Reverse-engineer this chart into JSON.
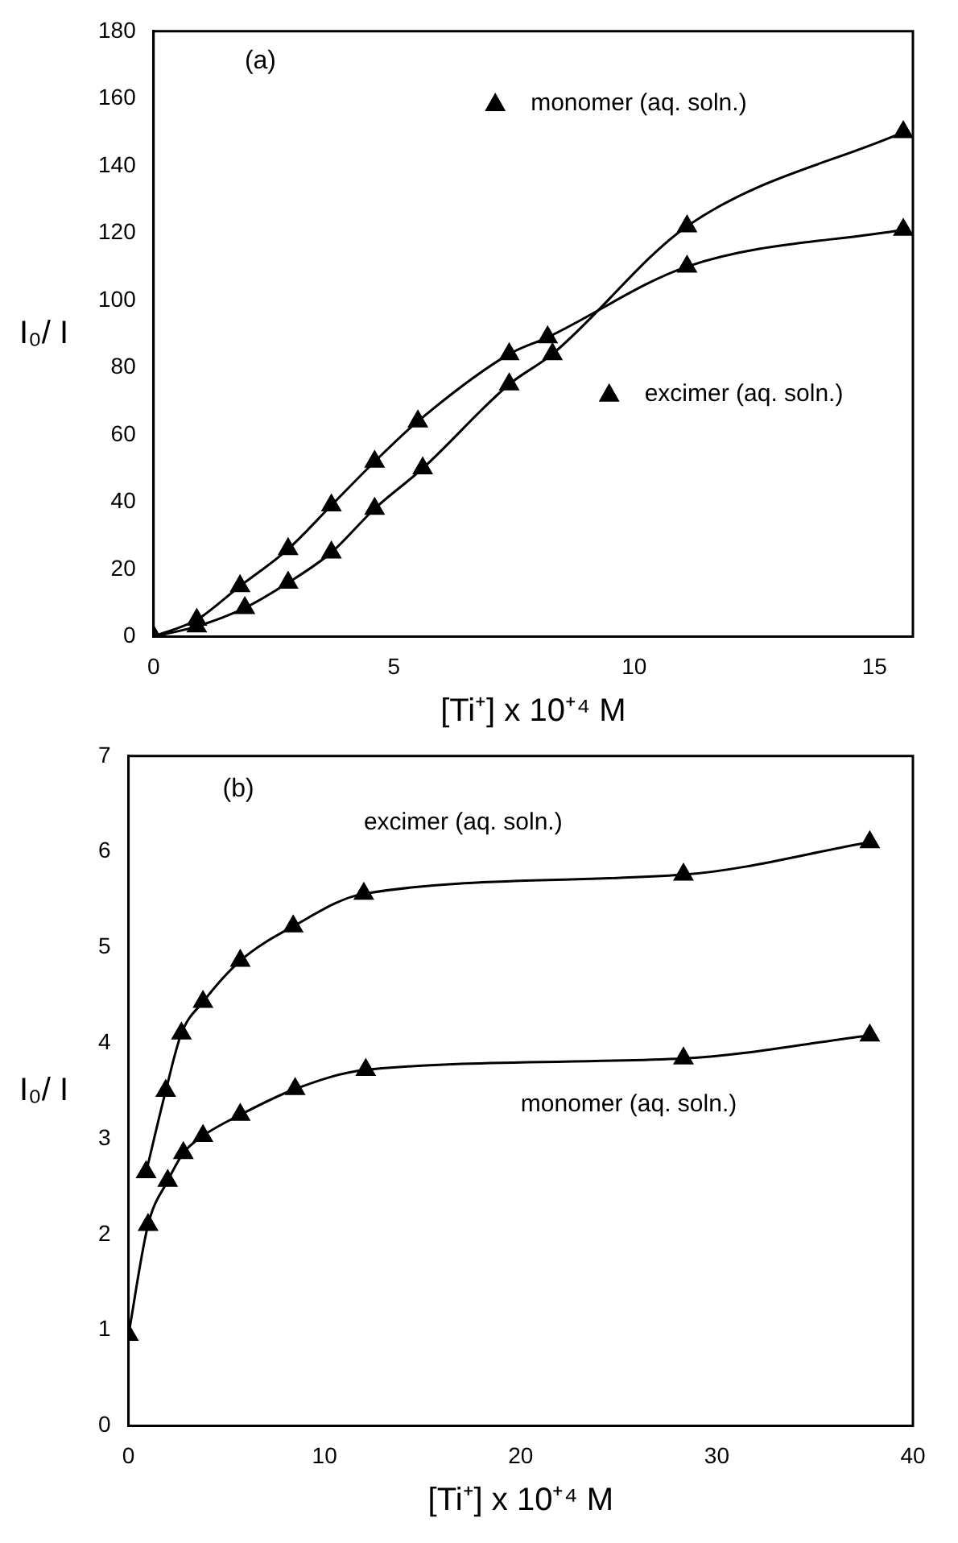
{
  "chart_data": [
    {
      "type": "line",
      "annotations": [
        "(a)"
      ],
      "xlabel": "[Ti⁺] x 10⁺⁴ M",
      "ylabel": "I₀/ I",
      "xlim": [
        0,
        15.8
      ],
      "xticks": [
        0,
        5,
        10,
        15
      ],
      "ylim": [
        0,
        180
      ],
      "yticks": [
        0,
        20,
        40,
        60,
        80,
        100,
        120,
        140,
        160,
        180
      ],
      "grid": false,
      "legend": "top",
      "marker": "triangle",
      "line_style": "solid",
      "series": [
        {
          "name": "monomer (aq. soln.)",
          "color": "#000000",
          "x": [
            0,
            0.9,
            1.9,
            2.8,
            3.7,
            4.6,
            5.6,
            7.4,
            8.3,
            11.1,
            15.6
          ],
          "values": [
            0,
            3,
            8.5,
            16,
            25,
            38,
            50,
            75,
            84,
            122,
            150
          ]
        },
        {
          "name": "excimer (aq. soln.)",
          "color": "#000000",
          "x": [
            0,
            0.9,
            1.8,
            2.8,
            3.7,
            4.6,
            5.5,
            7.4,
            8.2,
            11.1,
            15.6
          ],
          "values": [
            0,
            5,
            15,
            26,
            39,
            52,
            64,
            84,
            89,
            110,
            121
          ]
        }
      ]
    },
    {
      "type": "line",
      "annotations": [
        "(b)"
      ],
      "xlabel": "[Ti⁺] x 10⁺⁴ M",
      "ylabel": "I₀/ I",
      "xlim": [
        0,
        40
      ],
      "xticks": [
        0,
        10,
        20,
        30,
        40
      ],
      "ylim": [
        0,
        7
      ],
      "yticks": [
        0,
        1,
        2,
        3,
        4,
        5,
        6,
        7
      ],
      "grid": false,
      "marker": "triangle",
      "line_style": "solid",
      "series": [
        {
          "name": "excimer (aq. soln.)",
          "color": "#000000",
          "x": [
            0.9,
            1.9,
            2.7,
            3.8,
            5.7,
            8.4,
            12.0,
            28.3,
            37.8
          ],
          "values": [
            2.65,
            3.5,
            4.1,
            4.43,
            4.86,
            5.22,
            5.56,
            5.76,
            6.1
          ]
        },
        {
          "name": "monomer (aq. soln.)",
          "color": "#000000",
          "x": [
            0,
            1.0,
            2.0,
            2.8,
            3.8,
            5.7,
            8.5,
            12.1,
            28.3,
            37.8
          ],
          "values": [
            0.95,
            2.1,
            2.56,
            2.85,
            3.03,
            3.25,
            3.52,
            3.72,
            3.84,
            4.08
          ]
        }
      ]
    }
  ]
}
